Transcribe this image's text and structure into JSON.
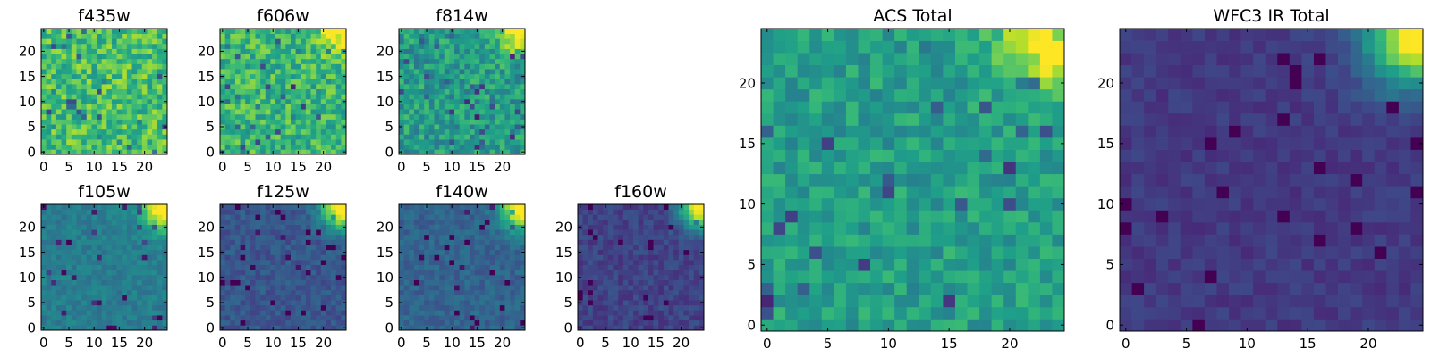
{
  "chart_data": [
    {
      "type": "heatmap",
      "title": "f435w",
      "grid_size": 25,
      "colormap": "viridis",
      "origin": "lower",
      "xticks": [
        0,
        5,
        10,
        15,
        20
      ],
      "yticks": [
        0,
        5,
        10,
        15,
        20
      ],
      "xlim": [
        -0.5,
        24.5
      ],
      "ylim": [
        -0.5,
        24.5
      ],
      "pattern": {
        "base": 0.7,
        "amp": 0.18,
        "corner": 0.0,
        "seed": 11
      }
    },
    {
      "type": "heatmap",
      "title": "f606w",
      "grid_size": 25,
      "colormap": "viridis",
      "origin": "lower",
      "xticks": [
        0,
        5,
        10,
        15,
        20
      ],
      "yticks": [
        0,
        5,
        10,
        15,
        20
      ],
      "xlim": [
        -0.5,
        24.5
      ],
      "ylim": [
        -0.5,
        24.5
      ],
      "pattern": {
        "base": 0.66,
        "amp": 0.17,
        "corner": 0.45,
        "seed": 23
      }
    },
    {
      "type": "heatmap",
      "title": "f814w",
      "grid_size": 25,
      "colormap": "viridis",
      "origin": "lower",
      "xticks": [
        0,
        5,
        10,
        15,
        20
      ],
      "yticks": [
        0,
        5,
        10,
        15,
        20
      ],
      "xlim": [
        -0.5,
        24.5
      ],
      "ylim": [
        -0.5,
        24.5
      ],
      "pattern": {
        "base": 0.55,
        "amp": 0.16,
        "corner": 0.55,
        "seed": 37
      }
    },
    {
      "type": "heatmap",
      "title": "f105w",
      "grid_size": 25,
      "colormap": "viridis",
      "origin": "lower",
      "xticks": [
        0,
        5,
        10,
        15,
        20
      ],
      "yticks": [
        0,
        5,
        10,
        15,
        20
      ],
      "xlim": [
        -0.5,
        24.5
      ],
      "ylim": [
        -0.5,
        24.5
      ],
      "pattern": {
        "base": 0.42,
        "amp": 0.07,
        "corner": 0.75,
        "seed": 41
      }
    },
    {
      "type": "heatmap",
      "title": "f125w",
      "grid_size": 25,
      "colormap": "viridis",
      "origin": "lower",
      "xticks": [
        0,
        5,
        10,
        15,
        20
      ],
      "yticks": [
        0,
        5,
        10,
        15,
        20
      ],
      "xlim": [
        -0.5,
        24.5
      ],
      "ylim": [
        -0.5,
        24.5
      ],
      "pattern": {
        "base": 0.27,
        "amp": 0.07,
        "corner": 0.85,
        "seed": 53
      }
    },
    {
      "type": "heatmap",
      "title": "f140w",
      "grid_size": 25,
      "colormap": "viridis",
      "origin": "lower",
      "xticks": [
        0,
        5,
        10,
        15,
        20
      ],
      "yticks": [
        0,
        5,
        10,
        15,
        20
      ],
      "xlim": [
        -0.5,
        24.5
      ],
      "ylim": [
        -0.5,
        24.5
      ],
      "pattern": {
        "base": 0.32,
        "amp": 0.07,
        "corner": 0.82,
        "seed": 67
      }
    },
    {
      "type": "heatmap",
      "title": "f160w",
      "grid_size": 25,
      "colormap": "viridis",
      "origin": "lower",
      "xticks": [
        0,
        5,
        10,
        15,
        20
      ],
      "yticks": [
        0,
        5,
        10,
        15,
        20
      ],
      "xlim": [
        -0.5,
        24.5
      ],
      "ylim": [
        -0.5,
        24.5
      ],
      "pattern": {
        "base": 0.2,
        "amp": 0.07,
        "corner": 0.88,
        "seed": 79
      }
    },
    {
      "type": "heatmap",
      "title": "ACS Total",
      "grid_size": 25,
      "colormap": "viridis",
      "origin": "lower",
      "xticks": [
        0,
        5,
        10,
        15,
        20
      ],
      "yticks": [
        0,
        5,
        10,
        15,
        20
      ],
      "xlim": [
        -0.5,
        24.5
      ],
      "ylim": [
        -0.5,
        24.5
      ],
      "pattern": {
        "base": 0.56,
        "amp": 0.12,
        "corner": 0.55,
        "seed": 83
      }
    },
    {
      "type": "heatmap",
      "title": "WFC3 IR Total",
      "grid_size": 25,
      "colormap": "viridis",
      "origin": "lower",
      "xticks": [
        0,
        5,
        10,
        15,
        20
      ],
      "yticks": [
        0,
        5,
        10,
        15,
        20
      ],
      "xlim": [
        -0.5,
        24.5
      ],
      "ylim": [
        -0.5,
        24.5
      ],
      "pattern": {
        "base": 0.17,
        "amp": 0.05,
        "corner": 0.88,
        "seed": 97
      }
    }
  ]
}
